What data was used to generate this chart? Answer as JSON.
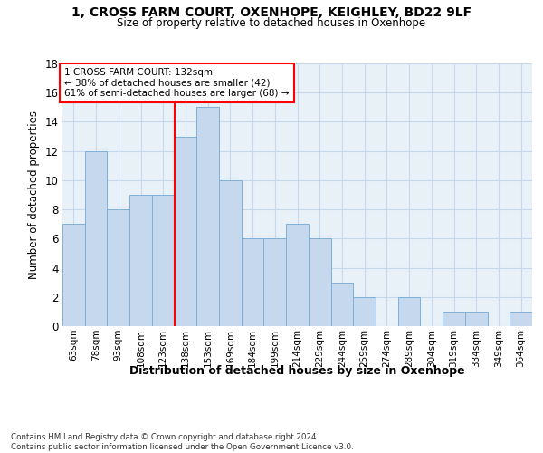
{
  "title": "1, CROSS FARM COURT, OXENHOPE, KEIGHLEY, BD22 9LF",
  "subtitle": "Size of property relative to detached houses in Oxenhope",
  "xlabel": "Distribution of detached houses by size in Oxenhope",
  "ylabel": "Number of detached properties",
  "bar_labels": [
    "63sqm",
    "78sqm",
    "93sqm",
    "108sqm",
    "123sqm",
    "138sqm",
    "153sqm",
    "169sqm",
    "184sqm",
    "199sqm",
    "214sqm",
    "229sqm",
    "244sqm",
    "259sqm",
    "274sqm",
    "289sqm",
    "304sqm",
    "319sqm",
    "334sqm",
    "349sqm",
    "364sqm"
  ],
  "bar_values": [
    7,
    12,
    8,
    9,
    9,
    13,
    15,
    10,
    6,
    6,
    7,
    6,
    3,
    2,
    0,
    2,
    0,
    1,
    1,
    0,
    1
  ],
  "bar_color": "#C5D8EE",
  "bar_edge_color": "#7EB0D9",
  "red_line_index": 5,
  "annotation_text": "1 CROSS FARM COURT: 132sqm\n← 38% of detached houses are smaller (42)\n61% of semi-detached houses are larger (68) →",
  "ylim": [
    0,
    18
  ],
  "yticks": [
    0,
    2,
    4,
    6,
    8,
    10,
    12,
    14,
    16,
    18
  ],
  "grid_color": "#C8D8EC",
  "background_color": "#E8F0F8",
  "footer_line1": "Contains HM Land Registry data © Crown copyright and database right 2024.",
  "footer_line2": "Contains public sector information licensed under the Open Government Licence v3.0."
}
